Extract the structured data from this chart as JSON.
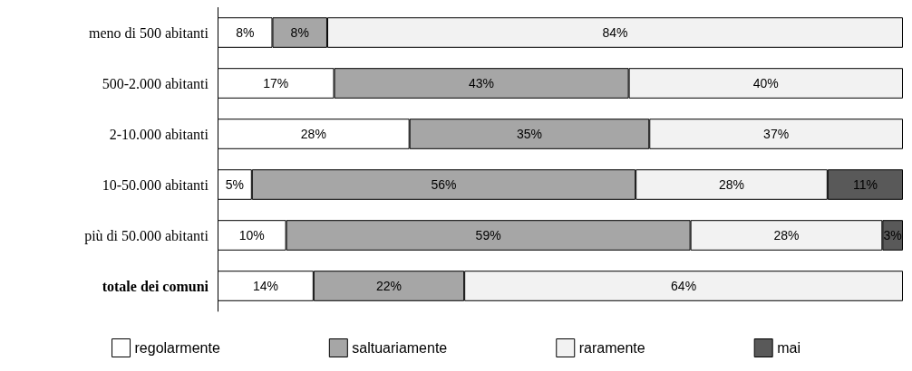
{
  "chart_data": {
    "type": "bar",
    "orientation": "horizontal",
    "stacked": true,
    "legend": "bottom",
    "grid": false,
    "categories": [
      "meno di 500 abitanti",
      "500-2.000 abitanti",
      "2-10.000 abitanti",
      "10-50.000 abitanti",
      "più di 50.000 abitanti",
      "totale dei comuni"
    ],
    "xlim": [
      0,
      100
    ],
    "series": [
      {
        "name": "regolarmente",
        "color": "#ffffff",
        "values": [
          8,
          17,
          28,
          5,
          10,
          14
        ],
        "value_labels": [
          "8%",
          "17%",
          "28%",
          "5%",
          "10%",
          "14%"
        ]
      },
      {
        "name": "saltuariamente",
        "color": "#a6a6a6",
        "values": [
          8,
          43,
          35,
          56,
          59,
          22
        ],
        "value_labels": [
          "8%",
          "43%",
          "35%",
          "56%",
          "59%",
          "22%"
        ]
      },
      {
        "name": "raramente",
        "color": "#f2f2f2",
        "values": [
          84,
          40,
          37,
          28,
          28,
          64
        ],
        "value_labels": [
          "84%",
          "40%",
          "37%",
          "28%",
          "28%",
          "64%"
        ]
      },
      {
        "name": "mai",
        "color": "#595959",
        "values": [
          null,
          null,
          null,
          11,
          3,
          null
        ],
        "value_labels": [
          null,
          null,
          null,
          "11%",
          "3%",
          null
        ]
      }
    ]
  }
}
